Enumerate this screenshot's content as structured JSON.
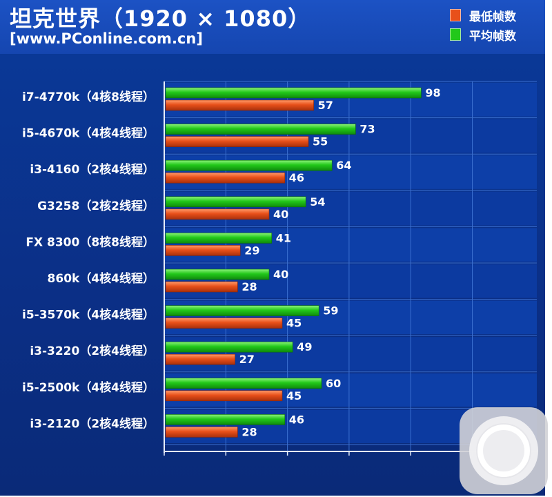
{
  "colors": {
    "min": "#e8501a",
    "avg": "#22c81a",
    "background": "#0b2f86"
  },
  "icons": {
    "assistive_touch": "assistive-touch-icon"
  },
  "chart_data": {
    "type": "bar",
    "orientation": "horizontal",
    "title": "坦克世界（1920 × 1080）",
    "subtitle": "[www.PConline.com.cn]",
    "categories": [
      "i7-4770k（4核8线程）",
      "i5-4670k（4核4线程）",
      "i3-4160（2核4线程）",
      "G3258（2核2线程）",
      "FX 8300（8核8线程）",
      "860k（4核4线程）",
      "i5-3570k（4核4线程）",
      "i3-3220（2核4线程）",
      "i5-2500k（4核4线程）",
      "i3-2120（2核4线程）"
    ],
    "series": [
      {
        "name": "平均帧数",
        "values": [
          98,
          73,
          64,
          54,
          41,
          40,
          59,
          49,
          60,
          46
        ]
      },
      {
        "name": "最低帧数",
        "values": [
          57,
          55,
          46,
          40,
          29,
          28,
          45,
          27,
          45,
          28
        ]
      }
    ],
    "legend_order": [
      "最低帧数",
      "平均帧数"
    ],
    "xlim": [
      0,
      120
    ],
    "grid": true,
    "legend_position": "top-right"
  }
}
